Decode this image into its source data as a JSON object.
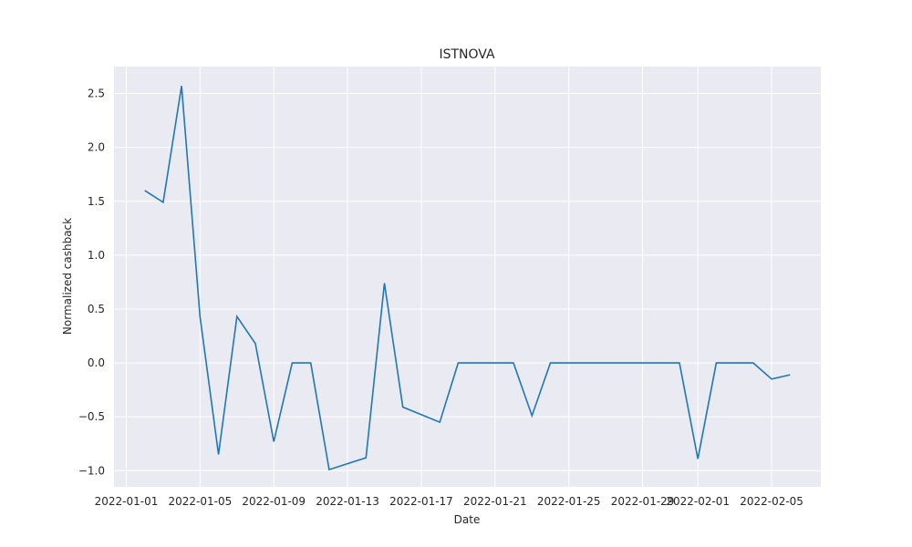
{
  "chart_data": {
    "type": "line",
    "title": "ISTNOVA",
    "xlabel": "Date",
    "ylabel": "Normalized cashback",
    "x_ticks": [
      "2022-01-01",
      "2022-01-05",
      "2022-01-09",
      "2022-01-13",
      "2022-01-17",
      "2022-01-21",
      "2022-01-25",
      "2022-01-29",
      "2022-02-01",
      "2022-02-05"
    ],
    "y_ticks": [
      "−1.0",
      "−0.5",
      "0.0",
      "0.5",
      "1.0",
      "1.5",
      "2.0",
      "2.5"
    ],
    "xlim": [
      "2021-12-31T08:00",
      "2022-02-07T16:00"
    ],
    "ylim": [
      -1.15,
      2.75
    ],
    "grid": true,
    "background": "#eaeaf2",
    "line_color": "#1f77b4",
    "series": [
      {
        "x": [
          "2022-01-02",
          "2022-01-03",
          "2022-01-04",
          "2022-01-05",
          "2022-01-06",
          "2022-01-07",
          "2022-01-08",
          "2022-01-09",
          "2022-01-10",
          "2022-01-11",
          "2022-01-12",
          "2022-01-14",
          "2022-01-15",
          "2022-01-16",
          "2022-01-18",
          "2022-01-19",
          "2022-01-20",
          "2022-01-21",
          "2022-01-22",
          "2022-01-23",
          "2022-01-24",
          "2022-01-25",
          "2022-01-26",
          "2022-01-27",
          "2022-01-28",
          "2022-01-29",
          "2022-01-30",
          "2022-01-31",
          "2022-02-01",
          "2022-02-02",
          "2022-02-03",
          "2022-02-04",
          "2022-02-05",
          "2022-02-06"
        ],
        "values": [
          1.6,
          1.49,
          2.57,
          0.43,
          -0.85,
          0.43,
          0.18,
          -0.73,
          0,
          0,
          -0.99,
          -0.88,
          0.74,
          -0.41,
          -0.55,
          0,
          0,
          0,
          0,
          -0.49,
          0,
          0,
          0,
          0,
          0,
          0,
          0,
          0,
          -0.89,
          0,
          0,
          0,
          -0.15,
          -0.11
        ]
      }
    ]
  }
}
